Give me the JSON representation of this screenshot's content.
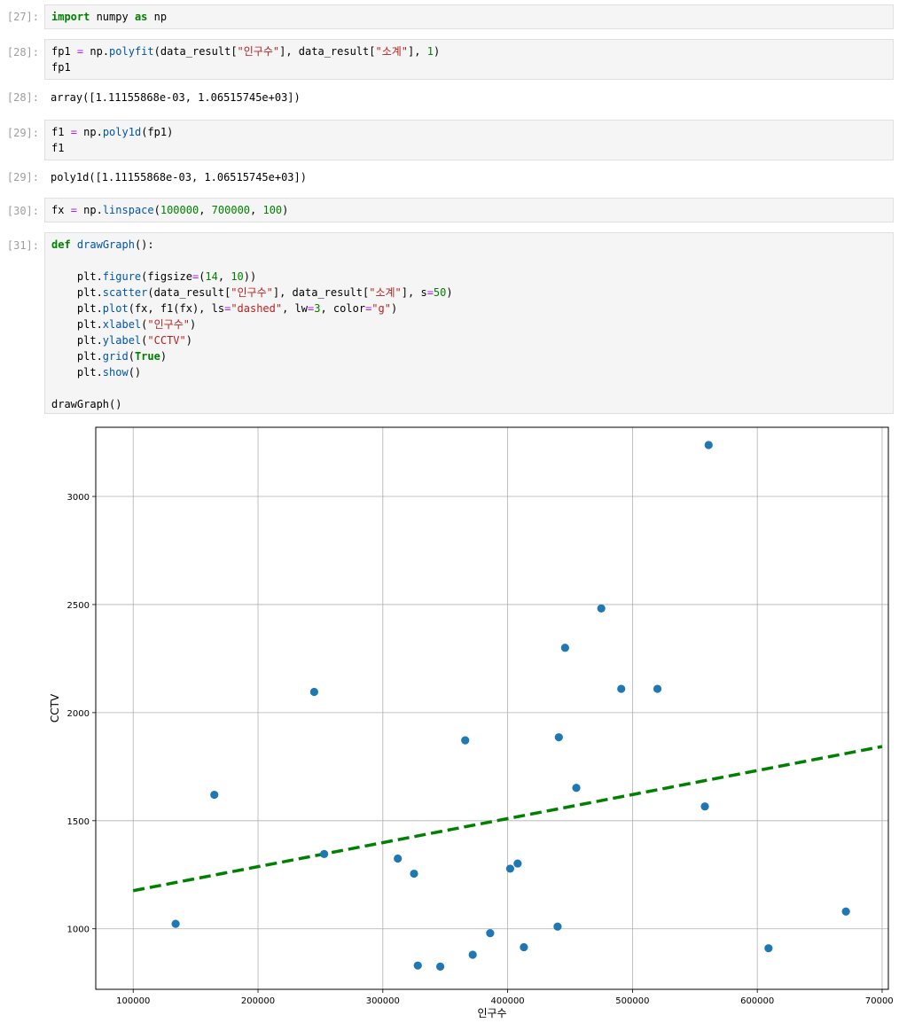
{
  "cells": [
    {
      "prompt": "[27]:",
      "lines": [
        [
          {
            "t": "import",
            "c": "kw"
          },
          {
            "t": " numpy ",
            "c": "plain"
          },
          {
            "t": "as",
            "c": "kw"
          },
          {
            "t": " np",
            "c": "plain"
          }
        ]
      ]
    },
    {
      "prompt": "[28]:",
      "lines": [
        [
          {
            "t": "fp1 ",
            "c": "plain"
          },
          {
            "t": "=",
            "c": "op"
          },
          {
            "t": " np.",
            "c": "plain"
          },
          {
            "t": "polyfit",
            "c": "fn"
          },
          {
            "t": "(data_result[",
            "c": "plain"
          },
          {
            "t": "\"인구수\"",
            "c": "str"
          },
          {
            "t": "], data_result[",
            "c": "plain"
          },
          {
            "t": "\"소계\"",
            "c": "str"
          },
          {
            "t": "], ",
            "c": "plain"
          },
          {
            "t": "1",
            "c": "num"
          },
          {
            "t": ")",
            "c": "plain"
          }
        ],
        [
          {
            "t": "fp1",
            "c": "plain"
          }
        ]
      ]
    },
    {
      "prompt": "[29]:",
      "lines": [
        [
          {
            "t": "f1 ",
            "c": "plain"
          },
          {
            "t": "=",
            "c": "op"
          },
          {
            "t": " np.",
            "c": "plain"
          },
          {
            "t": "poly1d",
            "c": "fn"
          },
          {
            "t": "(fp1)",
            "c": "plain"
          }
        ],
        [
          {
            "t": "f1",
            "c": "plain"
          }
        ]
      ]
    },
    {
      "prompt": "[30]:",
      "lines": [
        [
          {
            "t": "fx ",
            "c": "plain"
          },
          {
            "t": "=",
            "c": "op"
          },
          {
            "t": " np.",
            "c": "plain"
          },
          {
            "t": "linspace",
            "c": "fn"
          },
          {
            "t": "(",
            "c": "plain"
          },
          {
            "t": "100000",
            "c": "num"
          },
          {
            "t": ", ",
            "c": "plain"
          },
          {
            "t": "700000",
            "c": "num"
          },
          {
            "t": ", ",
            "c": "plain"
          },
          {
            "t": "100",
            "c": "num"
          },
          {
            "t": ")",
            "c": "plain"
          }
        ]
      ]
    },
    {
      "prompt": "[31]:",
      "lines": [
        [
          {
            "t": "def",
            "c": "kw"
          },
          {
            "t": " ",
            "c": "plain"
          },
          {
            "t": "drawGraph",
            "c": "fn"
          },
          {
            "t": "():",
            "c": "plain"
          }
        ],
        [],
        [
          {
            "t": "    plt.",
            "c": "plain"
          },
          {
            "t": "figure",
            "c": "fn"
          },
          {
            "t": "(figsize",
            "c": "plain"
          },
          {
            "t": "=",
            "c": "op"
          },
          {
            "t": "(",
            "c": "plain"
          },
          {
            "t": "14",
            "c": "num"
          },
          {
            "t": ", ",
            "c": "plain"
          },
          {
            "t": "10",
            "c": "num"
          },
          {
            "t": "))",
            "c": "plain"
          }
        ],
        [
          {
            "t": "    plt.",
            "c": "plain"
          },
          {
            "t": "scatter",
            "c": "fn"
          },
          {
            "t": "(data_result[",
            "c": "plain"
          },
          {
            "t": "\"인구수\"",
            "c": "str"
          },
          {
            "t": "], data_result[",
            "c": "plain"
          },
          {
            "t": "\"소계\"",
            "c": "str"
          },
          {
            "t": "], s",
            "c": "plain"
          },
          {
            "t": "=",
            "c": "op"
          },
          {
            "t": "50",
            "c": "num"
          },
          {
            "t": ")",
            "c": "plain"
          }
        ],
        [
          {
            "t": "    plt.",
            "c": "plain"
          },
          {
            "t": "plot",
            "c": "fn"
          },
          {
            "t": "(fx, f1(fx), ls",
            "c": "plain"
          },
          {
            "t": "=",
            "c": "op"
          },
          {
            "t": "\"dashed\"",
            "c": "str"
          },
          {
            "t": ", lw",
            "c": "plain"
          },
          {
            "t": "=",
            "c": "op"
          },
          {
            "t": "3",
            "c": "num"
          },
          {
            "t": ", color",
            "c": "plain"
          },
          {
            "t": "=",
            "c": "op"
          },
          {
            "t": "\"g\"",
            "c": "str"
          },
          {
            "t": ")",
            "c": "plain"
          }
        ],
        [
          {
            "t": "    plt.",
            "c": "plain"
          },
          {
            "t": "xlabel",
            "c": "fn"
          },
          {
            "t": "(",
            "c": "plain"
          },
          {
            "t": "\"인구수\"",
            "c": "str"
          },
          {
            "t": ")",
            "c": "plain"
          }
        ],
        [
          {
            "t": "    plt.",
            "c": "plain"
          },
          {
            "t": "ylabel",
            "c": "fn"
          },
          {
            "t": "(",
            "c": "plain"
          },
          {
            "t": "\"CCTV\"",
            "c": "str"
          },
          {
            "t": ")",
            "c": "plain"
          }
        ],
        [
          {
            "t": "    plt.",
            "c": "plain"
          },
          {
            "t": "grid",
            "c": "fn"
          },
          {
            "t": "(",
            "c": "plain"
          },
          {
            "t": "True",
            "c": "kw"
          },
          {
            "t": ")",
            "c": "plain"
          }
        ],
        [
          {
            "t": "    plt.",
            "c": "plain"
          },
          {
            "t": "show",
            "c": "fn"
          },
          {
            "t": "()",
            "c": "plain"
          }
        ],
        [],
        [
          {
            "t": "drawGraph()",
            "c": "plain"
          }
        ]
      ]
    }
  ],
  "outputs": {
    "out28": {
      "prompt": "[28]:",
      "text": "array([1.11155868e-03, 1.06515745e+03])"
    },
    "out29": {
      "prompt": "[29]:",
      "text": "poly1d([1.11155868e-03, 1.06515745e+03])"
    }
  },
  "chart_data": {
    "type": "scatter",
    "title": "",
    "xlabel": "인구수",
    "ylabel": "CCTV",
    "xlim": [
      70000,
      705000
    ],
    "ylim": [
      720,
      3320
    ],
    "xticks": [
      100000,
      200000,
      300000,
      400000,
      500000,
      600000,
      700000
    ],
    "yticks": [
      1000,
      1500,
      2000,
      2500,
      3000
    ],
    "grid": true,
    "point_color": "#1f77b4",
    "line_color": "#008000",
    "scatter": {
      "x": [
        134000,
        165000,
        245000,
        253000,
        312000,
        325000,
        328000,
        346000,
        366000,
        372000,
        386000,
        402000,
        408000,
        413000,
        440000,
        441000,
        446000,
        455000,
        475000,
        491000,
        520000,
        558000,
        561000,
        609000,
        671000
      ],
      "y": [
        1023,
        1620,
        2096,
        1346,
        1325,
        1255,
        830,
        825,
        1872,
        880,
        980,
        1278,
        1302,
        915,
        1010,
        1886,
        2300,
        1652,
        2482,
        2110,
        2110,
        1566,
        3238,
        910,
        1080
      ]
    },
    "fit_line": {
      "slope": 0.00111155868,
      "intercept": 1065.15745,
      "x": [
        100000,
        700000
      ],
      "y": [
        1176.3,
        1843.2
      ],
      "style": "dashed"
    }
  }
}
